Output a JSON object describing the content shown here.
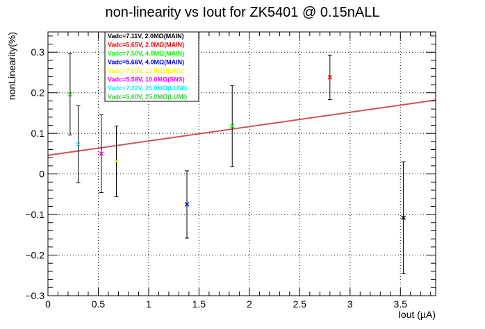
{
  "chart_data": {
    "type": "scatter",
    "title": "non-linearity vs Iout for ZK5401 @ 0.15nALL",
    "xlabel": "Iout (µA)",
    "ylabel": "nonLinearity(%)",
    "xlim": [
      0,
      3.85
    ],
    "ylim": [
      -0.3,
      0.35
    ],
    "x_ticks": [
      0,
      0.5,
      1,
      1.5,
      2,
      2.5,
      3,
      3.5
    ],
    "x_tick_labels": [
      "0",
      "0.5",
      "1",
      "1.5",
      "2",
      "2.5",
      "3",
      "3.5"
    ],
    "y_ticks": [
      -0.3,
      -0.2,
      -0.1,
      0,
      0.1,
      0.2,
      0.3
    ],
    "y_tick_labels": [
      "−0.3",
      "−0.2",
      "−0.1",
      "0",
      "0.1",
      "0.2",
      "0.3"
    ],
    "grid": true,
    "legend_position": "top-left",
    "series": [
      {
        "name": "Vadc=7.11V, 2.0MΩ(MAIN)",
        "color": "#000000",
        "x": [
          3.53
        ],
        "y": [
          -0.108
        ],
        "err": [
          0.138
        ]
      },
      {
        "name": "Vadc=5.65V, 2.0MΩ(MAIN)",
        "color": "#ff0000",
        "x": [
          2.8
        ],
        "y": [
          0.238
        ],
        "err": [
          0.055
        ]
      },
      {
        "name": "Vadc=7.50V, 4.0MΩ(MAIN)",
        "color": "#00ff00",
        "x": [
          1.83
        ],
        "y": [
          0.118
        ],
        "err": [
          0.1
        ]
      },
      {
        "name": "Vadc=5.66V, 4.0MΩ(MAIN)",
        "color": "#0000ff",
        "x": [
          1.38
        ],
        "y": [
          -0.075
        ],
        "err": [
          0.083
        ]
      },
      {
        "name": "Vadc=7.00V, 10.0MΩ(SNS)",
        "color": "#ffff00",
        "x": [
          0.68
        ],
        "y": [
          0.031
        ],
        "err": [
          0.087
        ]
      },
      {
        "name": "Vadc=5.58V, 10.0MΩ(SNS)",
        "color": "#ff00ff",
        "x": [
          0.53
        ],
        "y": [
          0.05
        ],
        "err": [
          0.096
        ]
      },
      {
        "name": "Vadc=7.32V, 25.0MΩ(LUMI)",
        "color": "#00ffff",
        "x": [
          0.3
        ],
        "y": [
          0.073
        ],
        "err": [
          0.095
        ]
      },
      {
        "name": "Vadc=5.60V, 25.0MΩ(LUMI)",
        "color": "#33cc33",
        "x": [
          0.22
        ],
        "y": [
          0.196
        ],
        "err": [
          0.1
        ]
      }
    ],
    "fit_line": {
      "color": "#cc5555",
      "x": [
        0,
        3.85
      ],
      "y": [
        0.046,
        0.182
      ]
    }
  }
}
